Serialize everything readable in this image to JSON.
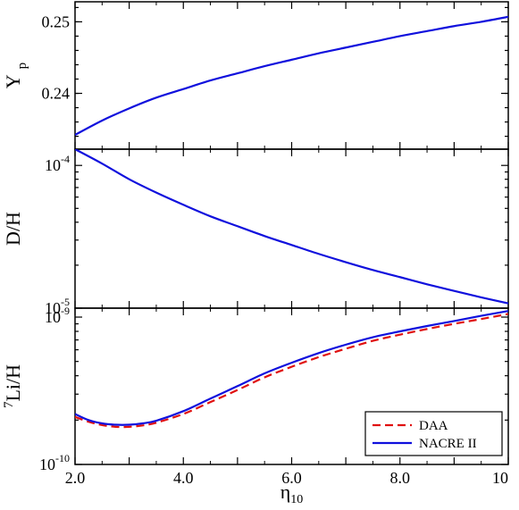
{
  "chart_data": [
    {
      "type": "line",
      "ylabel": "Y",
      "ylabel_sub": "p",
      "xlim": [
        2,
        10
      ],
      "ylim": [
        0.2322,
        0.2528
      ],
      "yscale": "linear",
      "yticks": [
        {
          "value": 0.24,
          "label": "0.24"
        },
        {
          "value": 0.25,
          "label": "0.25"
        }
      ],
      "series": [
        {
          "color": "#1010dd",
          "dash": "solid",
          "x": [
            2.0,
            2.5,
            3.0,
            3.5,
            4.0,
            4.5,
            5.0,
            5.5,
            6.0,
            6.5,
            7.0,
            7.5,
            8.0,
            8.5,
            9.0,
            9.5,
            10.0
          ],
          "y": [
            0.2342,
            0.2362,
            0.2379,
            0.2394,
            0.2406,
            0.2418,
            0.2428,
            0.2438,
            0.2447,
            0.2456,
            0.2464,
            0.2472,
            0.248,
            0.2487,
            0.2494,
            0.25,
            0.2507
          ]
        }
      ]
    },
    {
      "type": "line",
      "ylabel": "D/H",
      "xlim": [
        2,
        10
      ],
      "ylim": [
        1e-05,
        0.00013
      ],
      "yscale": "log",
      "yticks": [
        {
          "value": 0.0001,
          "base": "10",
          "exp": "-4"
        },
        {
          "value": 1e-05,
          "base": "10",
          "exp": "-5"
        }
      ],
      "series": [
        {
          "color": "#1010dd",
          "dash": "solid",
          "x": [
            2.0,
            2.5,
            3.0,
            3.5,
            4.0,
            4.5,
            5.0,
            5.5,
            6.0,
            6.5,
            7.0,
            7.5,
            8.0,
            8.5,
            9.0,
            9.5,
            10.0
          ],
          "y": [
            0.00013,
            0.000103,
            8e-05,
            6.45e-05,
            5.3e-05,
            4.4e-05,
            3.75e-05,
            3.2e-05,
            2.77e-05,
            2.4e-05,
            2.1e-05,
            1.85e-05,
            1.65e-05,
            1.47e-05,
            1.32e-05,
            1.19e-05,
            1.08e-05
          ]
        }
      ]
    },
    {
      "type": "line",
      "ylabel": "Li/H",
      "ylabel_pre": "7",
      "xlabel": "η",
      "xlabel_sub": "10",
      "xlim": [
        2,
        10
      ],
      "ylim": [
        1e-10,
        1.15e-09
      ],
      "yscale": "log",
      "yticks": [
        {
          "value": 1e-09,
          "base": "10",
          "exp": "-9"
        },
        {
          "value": 1e-10,
          "base": "10",
          "exp": "-10"
        }
      ],
      "xticks": [
        {
          "value": 2,
          "label": "2.0"
        },
        {
          "value": 4,
          "label": "4.0"
        },
        {
          "value": 6,
          "label": "6.0"
        },
        {
          "value": 8,
          "label": "8.0"
        },
        {
          "value": 10,
          "label": "10"
        }
      ],
      "legend_position": "bottom-right",
      "series": [
        {
          "name": "DAA",
          "color": "#e01010",
          "dash": "dashed",
          "x": [
            2.0,
            2.25,
            2.5,
            2.75,
            3.0,
            3.25,
            3.5,
            4.0,
            4.5,
            5.0,
            5.5,
            6.0,
            6.5,
            7.0,
            7.5,
            8.0,
            8.5,
            9.0,
            9.5,
            10.0
          ],
          "y": [
            2.1e-10,
            1.95e-10,
            1.85e-10,
            1.8e-10,
            1.8e-10,
            1.84e-10,
            1.92e-10,
            2.2e-10,
            2.65e-10,
            3.2e-10,
            3.9e-10,
            4.6e-10,
            5.35e-10,
            6.1e-10,
            6.9e-10,
            7.6e-10,
            8.3e-10,
            9e-10,
            9.7e-10,
            1.05e-09
          ]
        },
        {
          "name": "NACRE II",
          "color": "#1010dd",
          "dash": "solid",
          "x": [
            2.0,
            2.25,
            2.5,
            2.75,
            3.0,
            3.25,
            3.5,
            4.0,
            4.5,
            5.0,
            5.5,
            6.0,
            6.5,
            7.0,
            7.5,
            8.0,
            8.5,
            9.0,
            9.5,
            10.0
          ],
          "y": [
            2.2e-10,
            2e-10,
            1.9e-10,
            1.86e-10,
            1.86e-10,
            1.9e-10,
            1.98e-10,
            2.3e-10,
            2.8e-10,
            3.4e-10,
            4.15e-10,
            4.9e-10,
            5.7e-10,
            6.5e-10,
            7.3e-10,
            8e-10,
            8.7e-10,
            9.4e-10,
            1.02e-09,
            1.1e-09
          ]
        }
      ]
    }
  ]
}
